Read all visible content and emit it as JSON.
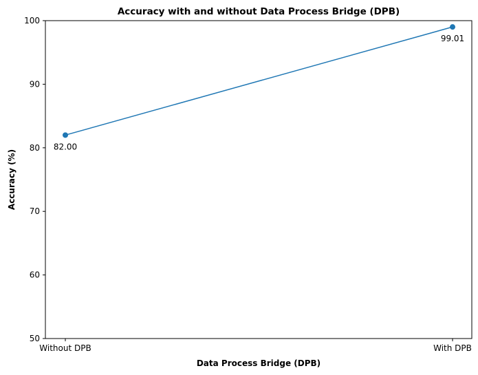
{
  "chart_data": {
    "type": "line",
    "title": "Accuracy with and without Data Process Bridge (DPB)",
    "xlabel": "Data Process Bridge (DPB)",
    "ylabel": "Accuracy (%)",
    "categories": [
      "Without DPB",
      "With DPB"
    ],
    "series": [
      {
        "values": [
          82.0,
          99.01
        ],
        "labels": [
          "82.00",
          "99.01"
        ],
        "color": "#1f77b4",
        "marker": "circle"
      }
    ],
    "ylim": [
      50,
      100
    ],
    "yticks": [
      50,
      60,
      70,
      80,
      90,
      100
    ],
    "ytick_labels": [
      "50",
      "60",
      "70",
      "80",
      "90",
      "100"
    ],
    "grid": false,
    "legend": "none"
  }
}
